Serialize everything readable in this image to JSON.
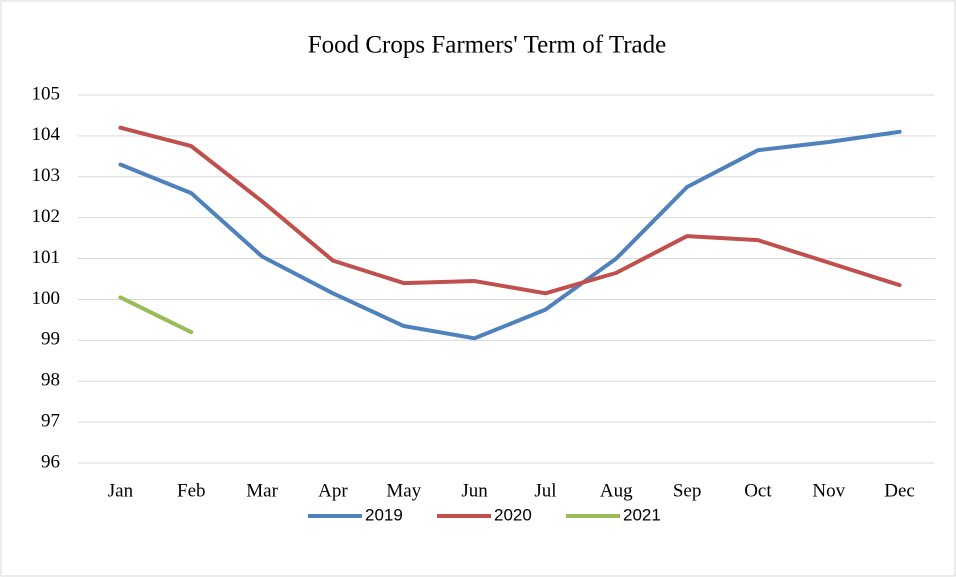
{
  "chart_data": {
    "type": "line",
    "title": "Food Crops Farmers' Term of Trade",
    "categories": [
      "Jan",
      "Feb",
      "Mar",
      "Apr",
      "May",
      "Jun",
      "Jul",
      "Aug",
      "Sep",
      "Oct",
      "Nov",
      "Dec"
    ],
    "series": [
      {
        "name": "2019",
        "color": "#4f81bd",
        "values": [
          103.3,
          102.6,
          101.05,
          100.15,
          99.35,
          99.05,
          99.75,
          101.0,
          102.75,
          103.65,
          103.85,
          104.1
        ]
      },
      {
        "name": "2020",
        "color": "#c0504d",
        "values": [
          104.2,
          103.75,
          102.4,
          100.95,
          100.4,
          100.45,
          100.15,
          100.65,
          101.55,
          101.45,
          100.9,
          100.35
        ]
      },
      {
        "name": "2021",
        "color": "#9bbb59",
        "values": [
          100.05,
          99.2,
          null,
          null,
          null,
          null,
          null,
          null,
          null,
          null,
          null,
          null
        ]
      }
    ],
    "ylim": [
      96,
      105
    ],
    "yticks": [
      96,
      97,
      98,
      99,
      100,
      101,
      102,
      103,
      104,
      105
    ],
    "grid": true,
    "legend": "bottom"
  }
}
